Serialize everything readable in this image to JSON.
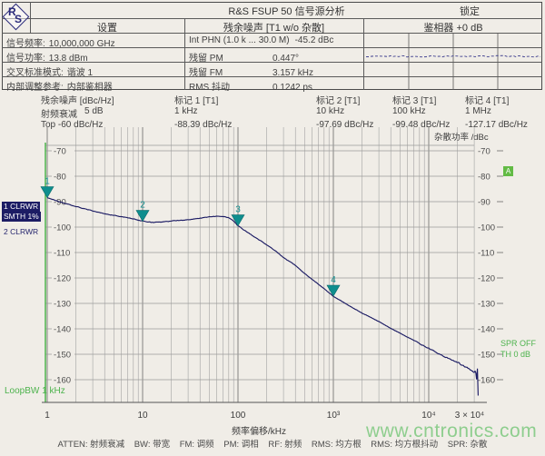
{
  "header": {
    "logo_r": "R",
    "logo_s": "S",
    "title": "R&S FSUP 50 信号源分析",
    "lock_label": "锁定",
    "settings": {
      "title": "设置",
      "rows": [
        {
          "label": "信号频率:",
          "value": "10,000,000 GHz"
        },
        {
          "label": "信号功率:",
          "value": "13.8 dBm"
        },
        {
          "label": "交叉标准模式:",
          "value": "谐波 1"
        },
        {
          "label": "内部调整参考:",
          "value": "内部鉴相器"
        }
      ]
    },
    "residual": {
      "title": "残余噪声 [T1 w/o 杂散]",
      "rows": [
        {
          "label": "Int PHN (1.0 k ... 30.0 M)",
          "value": "-45.2 dBc"
        },
        {
          "label": "残留 PM",
          "value": "0.447°"
        },
        {
          "label": "残留 FM",
          "value": "3.157 kHz"
        },
        {
          "label": "RMS 抖动",
          "value": "0.1242 ps"
        }
      ]
    },
    "phase_detector": {
      "title": "鉴相器 +0 dB"
    }
  },
  "info_bar": {
    "noise_col": {
      "line1": "残余噪声 [dBc/Hz]",
      "line2_label": "射频衰减",
      "line2_value": "5 dB",
      "line3": "Top -60 dBc/Hz"
    },
    "markers": [
      {
        "name": "标记 1 [T1]",
        "freq": "1 kHz",
        "value": "-88.39 dBc/Hz"
      },
      {
        "name": "标记 2 [T1]",
        "freq": "10 kHz",
        "value": "-97.69 dBc/Hz"
      },
      {
        "name": "标记 3 [T1]",
        "freq": "100 kHz",
        "value": "-99.48 dBc/Hz"
      },
      {
        "name": "标记 4 [T1]",
        "freq": "1 MHz",
        "value": "-127.17 dBc/Hz"
      }
    ]
  },
  "chart": {
    "spur_axis_label": "杂散功率 /dBc",
    "trace_badges": [
      "1 CLRWR",
      "SMTH 1%"
    ],
    "trace_label_2": "2 CLRWR",
    "loop_bw": "LoopBW 1 kHz",
    "spr_label": "SPR OFF",
    "th_label": "TH 0 dB",
    "screen_badge": "A",
    "xlabel": "频率偏移/kHz"
  },
  "chart_data": {
    "type": "line",
    "title": "残余噪声 [dBc/Hz] vs 频率偏移/kHz",
    "x_scale": "log",
    "xlim": [
      1,
      30000
    ],
    "ylim": [
      -160,
      -70
    ],
    "grid": true,
    "xlabel": "频率偏移/kHz",
    "ylabel": "dBc/Hz",
    "yticks": [
      -70,
      -80,
      -90,
      -100,
      -110,
      -120,
      -130,
      -140,
      -150,
      -160
    ],
    "xticks": [
      {
        "v": 1,
        "label": "1"
      },
      {
        "v": 10,
        "label": "10"
      },
      {
        "v": 100,
        "label": "100"
      },
      {
        "v": 1000,
        "label": "10³"
      },
      {
        "v": 10000,
        "label": "10⁴"
      },
      {
        "v": 30000,
        "label": "3 × 10⁴"
      }
    ],
    "series": [
      {
        "name": "1 CLRWR (phase noise trace)",
        "points": [
          [
            1,
            -88.4
          ],
          [
            1.3,
            -89.9
          ],
          [
            1.7,
            -91.1
          ],
          [
            2,
            -91.9
          ],
          [
            2.5,
            -92.8
          ],
          [
            3,
            -93.6
          ],
          [
            4,
            -94.8
          ],
          [
            5,
            -95.4
          ],
          [
            6,
            -95.9
          ],
          [
            8,
            -96.8
          ],
          [
            10,
            -97.7
          ],
          [
            13,
            -98.2
          ],
          [
            16,
            -98.0
          ],
          [
            20,
            -97.6
          ],
          [
            25,
            -97.3
          ],
          [
            30,
            -97.1
          ],
          [
            40,
            -96.5
          ],
          [
            50,
            -96.0
          ],
          [
            60,
            -95.7
          ],
          [
            70,
            -95.8
          ],
          [
            80,
            -96.3
          ],
          [
            90,
            -97.6
          ],
          [
            100,
            -99.5
          ],
          [
            120,
            -101.5
          ],
          [
            150,
            -104
          ],
          [
            200,
            -107
          ],
          [
            250,
            -109.5
          ],
          [
            300,
            -112
          ],
          [
            400,
            -115
          ],
          [
            500,
            -118.3
          ],
          [
            700,
            -122.5
          ],
          [
            1000,
            -127.2
          ],
          [
            1300,
            -129.8
          ],
          [
            1700,
            -132.3
          ],
          [
            2000,
            -133.8
          ],
          [
            2500,
            -135.6
          ],
          [
            3000,
            -137.2
          ],
          [
            4000,
            -139.8
          ],
          [
            5000,
            -141.7
          ],
          [
            7000,
            -144.5
          ],
          [
            10000,
            -147.6
          ],
          [
            13000,
            -149.9
          ],
          [
            16000,
            -151.6
          ],
          [
            20000,
            -153.2
          ],
          [
            24000,
            -154.8
          ],
          [
            27000,
            -156
          ],
          [
            30000,
            -157
          ],
          [
            31000,
            -156.5
          ],
          [
            31800,
            -160
          ],
          [
            32300,
            -155
          ],
          [
            33000,
            -167
          ]
        ]
      }
    ],
    "plot_markers": [
      {
        "n": "1",
        "x": 1,
        "y": -88.39
      },
      {
        "n": "2",
        "x": 10,
        "y": -97.69
      },
      {
        "n": "3",
        "x": 100,
        "y": -99.48
      },
      {
        "n": "4",
        "x": 1000,
        "y": -127.17
      }
    ]
  },
  "footer": {
    "legend": "ATTEN: 射频衰减    BW: 带宽    FM: 调频    PM: 调相    RF: 射频    RMS: 均方根    RMS: 均方根抖动    SPR: 杂散"
  },
  "watermark": "www.cntronics.com",
  "colors": {
    "trace": "#1c1c64",
    "marker": "#0e8e8e",
    "grid_minor": "#9b9b9b",
    "grid_major": "#777777",
    "axis": "#555555",
    "green": "#4db34d",
    "background": "#f0ede7",
    "mini_line": "#3a3a8c"
  }
}
